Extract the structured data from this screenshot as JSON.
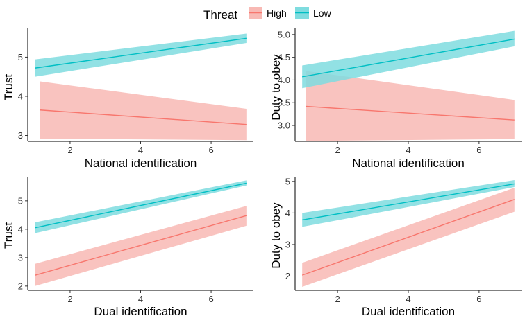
{
  "legend": {
    "title": "Threat",
    "items": [
      {
        "label": "High",
        "line_color": "#F8766D",
        "fill_color": "#F8B9B4"
      },
      {
        "label": "Low",
        "line_color": "#00BFC4",
        "fill_color": "#7FDCDF"
      }
    ]
  },
  "chart_data": [
    {
      "type": "line",
      "xlabel": "National identification",
      "ylabel": "Trust",
      "xlim": [
        0.8,
        7.2
      ],
      "ylim": [
        2.85,
        5.75
      ],
      "xticks": [
        2,
        4,
        6
      ],
      "yticks": [
        3,
        4,
        5
      ],
      "series": [
        {
          "name": "High",
          "x": [
            1.15,
            7.0
          ],
          "y": [
            3.65,
            3.28
          ],
          "lower": [
            2.92,
            2.88
          ],
          "upper": [
            4.38,
            3.68
          ]
        },
        {
          "name": "Low",
          "x": [
            1.0,
            7.0
          ],
          "y": [
            4.72,
            5.48
          ],
          "lower": [
            4.5,
            5.36
          ],
          "upper": [
            4.94,
            5.6
          ]
        }
      ]
    },
    {
      "type": "line",
      "xlabel": "National identification",
      "ylabel": "Duty to obey",
      "xlim": [
        0.8,
        7.2
      ],
      "ylim": [
        2.65,
        5.15
      ],
      "xticks": [
        2,
        4,
        6
      ],
      "yticks": [
        3.0,
        3.5,
        4.0,
        4.5,
        5.0
      ],
      "ytick_labels": [
        "3.0",
        "3.5",
        "4.0",
        "4.5",
        "5.0"
      ],
      "series": [
        {
          "name": "High",
          "x": [
            1.1,
            7.0
          ],
          "y": [
            3.42,
            3.12
          ],
          "lower": [
            2.66,
            2.7
          ],
          "upper": [
            4.2,
            3.56
          ]
        },
        {
          "name": "Low",
          "x": [
            1.0,
            7.0
          ],
          "y": [
            4.07,
            4.9
          ],
          "lower": [
            3.82,
            4.74
          ],
          "upper": [
            4.32,
            5.08
          ]
        }
      ]
    },
    {
      "type": "line",
      "xlabel": "Dual identification",
      "ylabel": "Trust",
      "xlim": [
        0.8,
        7.2
      ],
      "ylim": [
        1.85,
        5.85
      ],
      "xticks": [
        2,
        4,
        6
      ],
      "yticks": [
        2,
        3,
        4,
        5
      ],
      "series": [
        {
          "name": "High",
          "x": [
            1.0,
            7.0
          ],
          "y": [
            2.38,
            4.48
          ],
          "lower": [
            2.0,
            4.12
          ],
          "upper": [
            2.78,
            4.82
          ]
        },
        {
          "name": "Low",
          "x": [
            1.0,
            7.0
          ],
          "y": [
            4.05,
            5.62
          ],
          "lower": [
            3.86,
            5.54
          ],
          "upper": [
            4.24,
            5.72
          ]
        }
      ]
    },
    {
      "type": "line",
      "xlabel": "Dual identification",
      "ylabel": "Duty to obey",
      "xlim": [
        0.8,
        7.2
      ],
      "ylim": [
        1.55,
        5.15
      ],
      "xticks": [
        2,
        4,
        6
      ],
      "yticks": [
        2,
        3,
        4,
        5
      ],
      "series": [
        {
          "name": "High",
          "x": [
            1.0,
            7.0
          ],
          "y": [
            2.03,
            4.43
          ],
          "lower": [
            1.66,
            4.04
          ],
          "upper": [
            2.42,
            4.8
          ]
        },
        {
          "name": "Low",
          "x": [
            1.0,
            7.0
          ],
          "y": [
            3.78,
            4.92
          ],
          "lower": [
            3.56,
            4.82
          ],
          "upper": [
            4.0,
            5.04
          ]
        }
      ]
    }
  ]
}
